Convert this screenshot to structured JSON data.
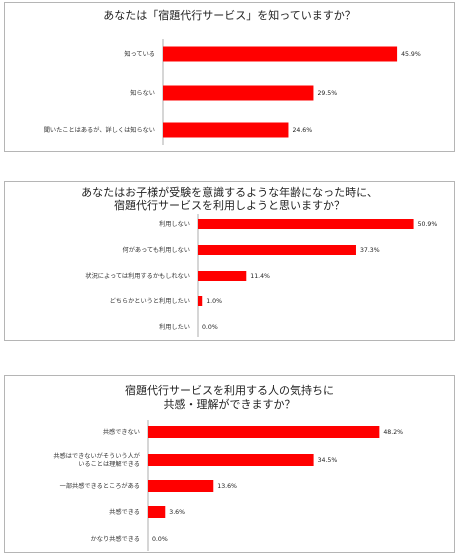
{
  "accent": "#ff0000",
  "chart_data": [
    {
      "type": "bar",
      "orientation": "horizontal",
      "title": "あなたは「宿題代行サービス」を知っていますか？",
      "title_lines": [
        "あなたは「宿題代行サービス」を知っていますか？"
      ],
      "categories": [
        "知っている",
        "知らない",
        "聞いたことはあるが、詳しくは知らない"
      ],
      "category_lines": [
        [
          "知っている"
        ],
        [
          "知らない"
        ],
        [
          "聞いたことはあるが、詳しくは知らない"
        ]
      ],
      "values": [
        45.9,
        29.5,
        24.6
      ],
      "value_labels": [
        "45.9%",
        "29.5%",
        "24.6%"
      ],
      "xlim": [
        0,
        50
      ],
      "grid": false,
      "legend": "none",
      "color": "#ff0000"
    },
    {
      "type": "bar",
      "orientation": "horizontal",
      "title": "あなたはお子様が受験を意識するような年齢になった時に、宿題代行サービスを利用しようと思いますか？",
      "title_lines": [
        "あなたはお子様が受験を意識するような年齢になった時に、",
        "宿題代行サービスを利用しようと思いますか？"
      ],
      "categories": [
        "利用しない",
        "何があっても利用しない",
        "状況によっては利用するかもしれない",
        "どちらかというと利用したい",
        "利用したい"
      ],
      "category_lines": [
        [
          "利用しない"
        ],
        [
          "何があっても利用しない"
        ],
        [
          "状況によっては利用するかもしれない"
        ],
        [
          "どちらかというと利用したい"
        ],
        [
          "利用したい"
        ]
      ],
      "values": [
        50.9,
        37.3,
        11.4,
        1.0,
        0.0
      ],
      "value_labels": [
        "50.9%",
        "37.3%",
        "11.4%",
        "1.0%",
        "0.0%"
      ],
      "xlim": [
        0,
        51
      ],
      "grid": false,
      "legend": "none",
      "color": "#ff0000"
    },
    {
      "type": "bar",
      "orientation": "horizontal",
      "title": "宿題代行サービスを利用する人の気持ちに共感・理解ができますか？",
      "title_lines": [
        "宿題代行サービスを利用する人の気持ちに",
        "共感・理解ができますか？"
      ],
      "categories": [
        "共感できない",
        "共感はできないがそういう人がいることは理解できる",
        "一部共感できるところがある",
        "共感できる",
        "かなり共感できる"
      ],
      "category_lines": [
        [
          "共感できない"
        ],
        [
          "共感はできないがそういう人が",
          "いることは理解できる"
        ],
        [
          "一部共感できるところがある"
        ],
        [
          "共感できる"
        ],
        [
          "かなり共感できる"
        ]
      ],
      "values": [
        48.2,
        34.5,
        13.6,
        3.6,
        0.0
      ],
      "value_labels": [
        "48.2%",
        "34.5%",
        "13.6%",
        "3.6%",
        "0.0%"
      ],
      "xlim": [
        0,
        50
      ],
      "grid": false,
      "legend": "none",
      "color": "#ff0000"
    }
  ]
}
